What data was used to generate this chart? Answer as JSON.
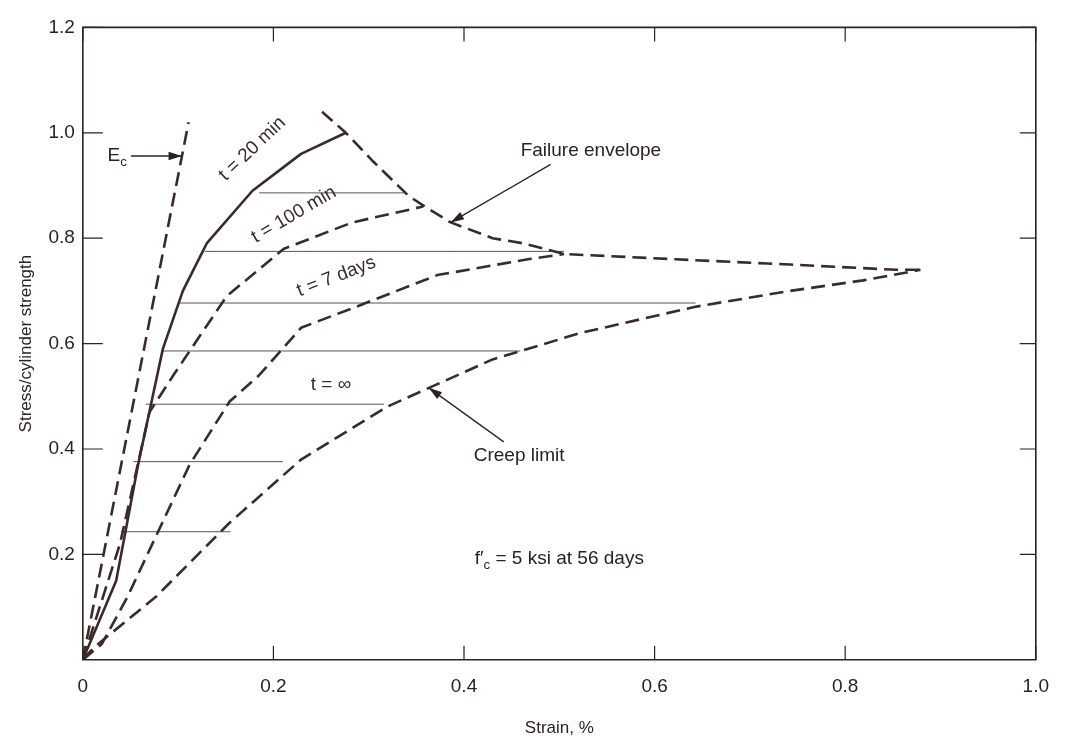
{
  "chart_data": {
    "type": "line",
    "xlabel": "Strain, %",
    "ylabel": "Stress/cylinder strength",
    "xlim": [
      0,
      1.0
    ],
    "xticks": [
      0,
      0.2,
      0.4,
      0.6,
      0.8,
      {
        "value": 1,
        "label": "1.0"
      }
    ],
    "ylim": [
      0,
      1.2
    ],
    "yticks": [
      0.2,
      0.4,
      0.6,
      0.8,
      {
        "value": 1,
        "label": "1.0"
      },
      1.2
    ],
    "grid": false,
    "marker": "none",
    "series": [
      {
        "color": "#3a2a2a",
        "line_style": "dashed",
        "x": [
          0,
          0.111
        ],
        "values": [
          0,
          1.02
        ]
      },
      {
        "name": "t = 20 min",
        "color": "#3a2a2a",
        "line_style": "solid",
        "x": [
          0,
          0.035,
          0.058,
          0.084,
          0.105,
          0.13,
          0.178,
          0.229,
          0.276
        ],
        "values": [
          0,
          0.15,
          0.37,
          0.59,
          0.7,
          0.79,
          0.89,
          0.96,
          1.0
        ]
      },
      {
        "name": "t = 100 min",
        "color": "#3a2a2a",
        "line_style": "dashed",
        "x": [
          0,
          0.039,
          0.07,
          0.095,
          0.151,
          0.211,
          0.283,
          0.357
        ],
        "values": [
          0,
          0.22,
          0.47,
          0.54,
          0.69,
          0.78,
          0.83,
          0.86
        ]
      },
      {
        "name": "t = 7 days",
        "color": "#3a2a2a",
        "line_style": "dashed",
        "x": [
          0,
          0.02,
          0.047,
          0.112,
          0.154,
          0.185,
          0.229,
          0.287,
          0.372,
          0.467,
          0.505
        ],
        "values": [
          0,
          0.03,
          0.12,
          0.37,
          0.49,
          0.54,
          0.63,
          0.67,
          0.73,
          0.76,
          0.77
        ]
      },
      {
        "name": "t = ∞",
        "color": "#3a2a2a",
        "line_style": "dashed",
        "x": [
          0,
          0.012,
          0.077,
          0.154,
          0.229,
          0.319,
          0.43,
          0.522,
          0.643,
          0.742,
          0.819,
          0.879
        ],
        "values": [
          0,
          0.024,
          0.12,
          0.26,
          0.38,
          0.48,
          0.57,
          0.62,
          0.67,
          0.7,
          0.72,
          0.74
        ]
      },
      {
        "color": "#3a2a2a",
        "line_style": "dashed",
        "x": [
          0.251,
          0.276,
          0.305,
          0.342,
          0.359,
          0.386,
          0.43,
          0.463,
          0.505,
          0.622,
          0.742,
          0.854,
          0.879
        ],
        "values": [
          1.04,
          1.0,
          0.945,
          0.88,
          0.86,
          0.83,
          0.8,
          0.79,
          0.77,
          0.76,
          0.75,
          0.74,
          0.74
        ]
      },
      {
        "color": "#555555",
        "line_style": "solid",
        "x": [
          0.185,
          0.339
        ],
        "values": [
          0.886,
          0.886
        ]
      },
      {
        "color": "#555555",
        "line_style": "solid",
        "x": [
          0.128,
          0.505
        ],
        "values": [
          0.775,
          0.775
        ]
      },
      {
        "color": "#555555",
        "line_style": "solid",
        "x": [
          0.101,
          0.643
        ],
        "values": [
          0.677,
          0.677
        ]
      },
      {
        "color": "#555555",
        "line_style": "solid",
        "x": [
          0.083,
          0.459
        ],
        "values": [
          0.586,
          0.586
        ]
      },
      {
        "color": "#555555",
        "line_style": "solid",
        "x": [
          0.066,
          0.316
        ],
        "values": [
          0.485,
          0.485
        ]
      },
      {
        "color": "#555555",
        "line_style": "solid",
        "x": [
          0.053,
          0.21
        ],
        "values": [
          0.376,
          0.376
        ]
      },
      {
        "color": "#555555",
        "line_style": "solid",
        "x": [
          0.04,
          0.155
        ],
        "values": [
          0.243,
          0.243
        ]
      }
    ],
    "annotations": [
      {
        "text": "E$_{c}$",
        "x": 0.104,
        "y": 0.956
      },
      {
        "text": "Failure envelope",
        "x": 0.386,
        "y": 0.83
      },
      {
        "text": "Creep limit",
        "x": 0.363,
        "y": 0.516
      },
      "f′$_{c}$ = 5 ksi at 56 days"
    ]
  }
}
